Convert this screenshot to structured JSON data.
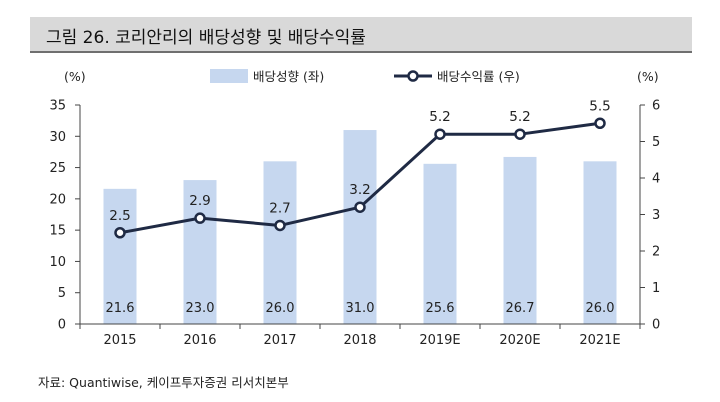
{
  "figure": {
    "title": "그림 26.  코리안리의 배당성향 및 배당수익률",
    "source": "자료: Quantiwise, 케이프투자증권 리서치본부"
  },
  "chart_data": {
    "type": "bar",
    "categories": [
      "2015",
      "2016",
      "2017",
      "2018",
      "2019E",
      "2020E",
      "2021E"
    ],
    "series": [
      {
        "name": "배당성향 (좌)",
        "type": "bar",
        "axis": "left",
        "values": [
          21.6,
          23.0,
          26.0,
          31.0,
          25.6,
          26.7,
          26.0
        ],
        "labels": [
          "21.6",
          "23.0",
          "26.0",
          "31.0",
          "25.6",
          "26.7",
          "26.0"
        ],
        "color": "#c6d7ef"
      },
      {
        "name": "배당수익률 (우)",
        "type": "line",
        "axis": "right",
        "values": [
          2.5,
          2.9,
          2.7,
          3.2,
          5.2,
          5.2,
          5.5
        ],
        "labels": [
          "2.5",
          "2.9",
          "2.7",
          "3.2",
          "5.2",
          "5.2",
          "5.5"
        ],
        "color": "#1f2a44"
      }
    ],
    "y_left": {
      "unit": "(%)",
      "min": 0,
      "max": 35,
      "ticks": [
        "0",
        "5",
        "10",
        "15",
        "20",
        "25",
        "30",
        "35"
      ]
    },
    "y_right": {
      "unit": "(%)",
      "min": 0,
      "max": 6,
      "ticks": [
        "0",
        "1",
        "2",
        "3",
        "4",
        "5",
        "6"
      ]
    },
    "legend": "top-center",
    "grid": false
  }
}
